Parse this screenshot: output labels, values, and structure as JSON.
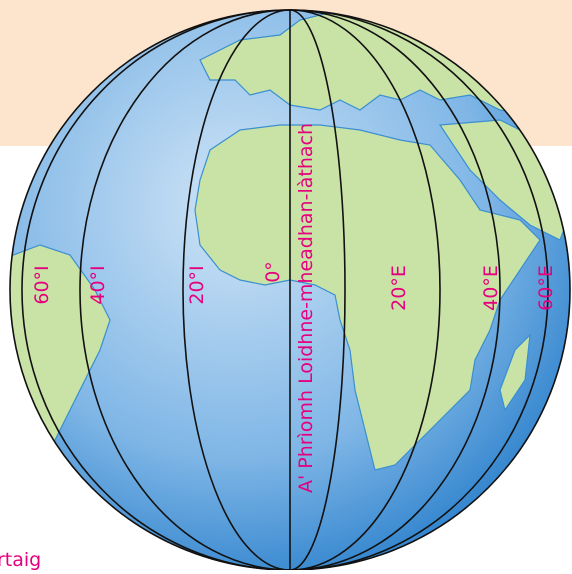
{
  "meridians": [
    "60°I",
    "40°I",
    "20°I",
    "0°",
    "20°E",
    "40°E",
    "60°E"
  ],
  "prime_meridian_label": "A' Phrìomh Loidhne-mheadhan-làthach",
  "corner_text": "rtaig"
}
